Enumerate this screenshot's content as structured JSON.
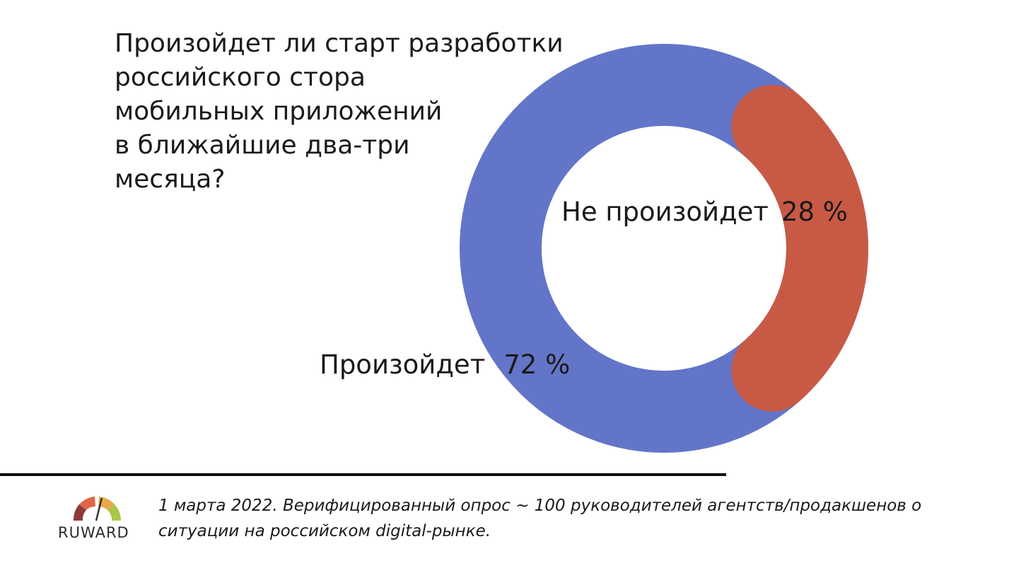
{
  "chart_data": {
    "type": "pie",
    "subtype": "donut",
    "title_lines": [
      "Произойдет ли старт разработки",
      "российского стора",
      "мобильных приложений",
      "в ближайшие два-три",
      "месяца?"
    ],
    "slices": [
      {
        "label": "Произойдет",
        "value": 72,
        "value_label": "72 %",
        "color": "#6375C8"
      },
      {
        "label": "Не произойдет",
        "value": 28,
        "value_label": "28 %",
        "color": "#C85A45"
      }
    ]
  },
  "footer": {
    "logo_text": "RUWARD",
    "note": "1 марта 2022. Верифицированный опрос ~ 100 руководителей агентств/продакшенов о ситуации на российском digital-рынке."
  }
}
